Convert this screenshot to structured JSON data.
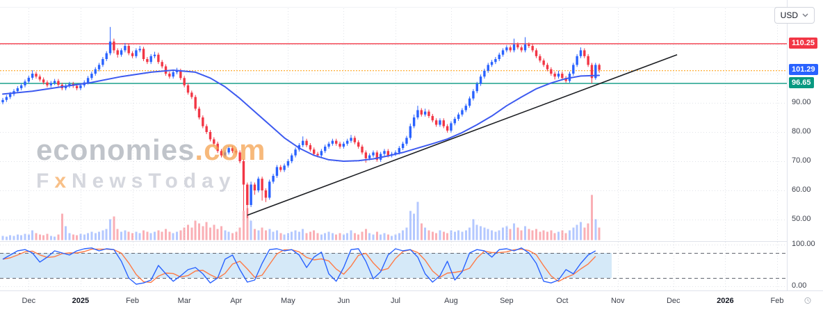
{
  "toolbar": {
    "currency_label": "USD"
  },
  "watermark": {
    "brand_gray": "economies",
    "brand_orange": ".com",
    "tagline_f": "F",
    "tagline_x": "x",
    "tagline_rest": "NewsToday"
  },
  "price_axis": {
    "ticks": [
      {
        "label": "90.00",
        "value": 90
      },
      {
        "label": "80.00",
        "value": 80
      },
      {
        "label": "70.00",
        "value": 70
      },
      {
        "label": "60.00",
        "value": 60
      },
      {
        "label": "50.00",
        "value": 50
      }
    ],
    "osc_ticks": [
      {
        "label": "100.00",
        "value": 100
      },
      {
        "label": "0.00",
        "value": 0
      }
    ],
    "badges": [
      {
        "label": "110.25",
        "value": 110.25,
        "color": "#f23645"
      },
      {
        "label": "101.29",
        "value": 101.29,
        "color": "#2962ff"
      },
      {
        "label": "96.65",
        "value": 96.65,
        "color": "#089981"
      }
    ]
  },
  "time_axis": {
    "months": [
      {
        "label": "Dec",
        "i": 7
      },
      {
        "label": "2025",
        "i": 21,
        "major": true
      },
      {
        "label": "Feb",
        "i": 35
      },
      {
        "label": "Mar",
        "i": 49
      },
      {
        "label": "Apr",
        "i": 63
      },
      {
        "label": "May",
        "i": 77
      },
      {
        "label": "Jun",
        "i": 92
      },
      {
        "label": "Jul",
        "i": 106
      },
      {
        "label": "Aug",
        "i": 121
      },
      {
        "label": "Sep",
        "i": 136
      },
      {
        "label": "Oct",
        "i": 151
      },
      {
        "label": "Nov",
        "i": 166
      },
      {
        "label": "Dec",
        "i": 181
      },
      {
        "label": "2026",
        "i": 195,
        "major": true
      },
      {
        "label": "Feb",
        "i": 209
      }
    ]
  },
  "colors": {
    "up": "#2962ff",
    "down": "#f23645",
    "volume_up": "rgba(41,98,255,0.35)",
    "volume_down": "rgba(242,54,69,0.40)",
    "ma": "#3d5af0",
    "trendline": "#1c1e22",
    "resistance": "#f23645",
    "support": "#089981",
    "pivot": "#ff9800",
    "stoch_k": "#2962ff",
    "stoch_d": "#ff7a45",
    "stoch_fill": "#d5e9f8",
    "grid": "#dfe2e8",
    "axis_border": "#e0e3eb"
  },
  "chart_data": {
    "type": "candlestick",
    "currency": "USD",
    "yrange_main": [
      48,
      118
    ],
    "yrange_oscillator": [
      0,
      100
    ],
    "levels": {
      "resistance": 110.25,
      "support": 96.65,
      "pivot": 101.0,
      "last_price": 101.29
    },
    "price_gridlines": [
      110,
      100,
      90,
      80,
      70,
      60,
      50
    ],
    "candles": [
      [
        90.2,
        91.7,
        89.5,
        91
      ],
      [
        91,
        92.7,
        90.3,
        92
      ],
      [
        92,
        93.7,
        91.3,
        93
      ],
      [
        93,
        94.7,
        92.3,
        94
      ],
      [
        94,
        95.7,
        93.3,
        95
      ],
      [
        95,
        96.7,
        94.3,
        96
      ],
      [
        96,
        98,
        95.3,
        97.3
      ],
      [
        97.3,
        99.3,
        96.6,
        98.6
      ],
      [
        98.6,
        101.2,
        97.9,
        100
      ],
      [
        100,
        100.7,
        98.3,
        99
      ],
      [
        99,
        99.7,
        97.3,
        98
      ],
      [
        98,
        98.7,
        96.3,
        97
      ],
      [
        97,
        97.7,
        95.3,
        96
      ],
      [
        96,
        97.5,
        95.3,
        96.8
      ],
      [
        96.8,
        98.2,
        96.1,
        97.5
      ],
      [
        97.5,
        98.2,
        95.5,
        96.2
      ],
      [
        96.2,
        96.9,
        94.3,
        95
      ],
      [
        95,
        96.5,
        94.3,
        95.8
      ],
      [
        95.8,
        97.2,
        95.1,
        96.5
      ],
      [
        96.5,
        97.2,
        95.1,
        95.8
      ],
      [
        95.8,
        96.5,
        94.3,
        95
      ],
      [
        95,
        96.7,
        94.3,
        96
      ],
      [
        96,
        97.7,
        95.3,
        97
      ],
      [
        97,
        99.2,
        96.3,
        98.5
      ],
      [
        98.5,
        100.7,
        97.8,
        100
      ],
      [
        100,
        102.2,
        99.3,
        101.5
      ],
      [
        101.5,
        103.7,
        100.8,
        103
      ],
      [
        103,
        105.7,
        102.3,
        105
      ],
      [
        105,
        107.7,
        104.3,
        107
      ],
      [
        107,
        116,
        106.3,
        111
      ],
      [
        111,
        112,
        107,
        108
      ],
      [
        108,
        108.7,
        105.5,
        106.5
      ],
      [
        106.5,
        108.7,
        105.8,
        108
      ],
      [
        108,
        110.5,
        107.3,
        109.5
      ],
      [
        109.5,
        110.2,
        106.3,
        107
      ],
      [
        107,
        107.7,
        105.3,
        106
      ],
      [
        106,
        108.7,
        105.3,
        108
      ],
      [
        108,
        109.5,
        107.3,
        108.5
      ],
      [
        108.5,
        109.2,
        104.3,
        105
      ],
      [
        105,
        105.7,
        103.3,
        104
      ],
      [
        104,
        106.7,
        103.3,
        106
      ],
      [
        106,
        107.5,
        105.3,
        106.5
      ],
      [
        106.5,
        107.2,
        103.3,
        104
      ],
      [
        104,
        104.7,
        101.8,
        102.5
      ],
      [
        102.5,
        103.2,
        99.3,
        100
      ],
      [
        100,
        100.7,
        98.3,
        99
      ],
      [
        99,
        101.2,
        98.3,
        100.5
      ],
      [
        100.5,
        102,
        99.8,
        101
      ],
      [
        101,
        101.7,
        97.8,
        98.5
      ],
      [
        98.5,
        99.2,
        95.3,
        96
      ],
      [
        96,
        96.7,
        92.8,
        93.5
      ],
      [
        93.5,
        94.2,
        91.3,
        92
      ],
      [
        92,
        92.7,
        87.3,
        88
      ],
      [
        88,
        88.7,
        84.3,
        85
      ],
      [
        85,
        85.7,
        81.3,
        82
      ],
      [
        82,
        82.7,
        79.3,
        80
      ],
      [
        80,
        80.7,
        76.8,
        77.5
      ],
      [
        77.5,
        78.2,
        75.3,
        76
      ],
      [
        76,
        76.7,
        72.8,
        73.5
      ],
      [
        73.5,
        74.2,
        71.3,
        72
      ],
      [
        72,
        73.7,
        71.3,
        73
      ],
      [
        73,
        75.2,
        72.3,
        74.5
      ],
      [
        74.5,
        75.2,
        72.8,
        73.5
      ],
      [
        73.5,
        74.2,
        72.3,
        73
      ],
      [
        73,
        73.7,
        69.3,
        70
      ],
      [
        70,
        70.7,
        53,
        62
      ],
      [
        62,
        62.7,
        50.5,
        55
      ],
      [
        55,
        63,
        54.3,
        62
      ],
      [
        62,
        62.7,
        58.5,
        60
      ],
      [
        60,
        64.7,
        59.3,
        64
      ],
      [
        64,
        64.7,
        56.5,
        60
      ],
      [
        60,
        60.7,
        56,
        57.5
      ],
      [
        57.5,
        63.7,
        56.8,
        63
      ],
      [
        63,
        65.7,
        62.3,
        65
      ],
      [
        65,
        68.7,
        64.3,
        68
      ],
      [
        68,
        68.7,
        66.3,
        67
      ],
      [
        67,
        69.2,
        66.3,
        68.5
      ],
      [
        68.5,
        70.7,
        67.8,
        70
      ],
      [
        70,
        72.7,
        69.3,
        72
      ],
      [
        72,
        74.7,
        71.3,
        74
      ],
      [
        74,
        76.2,
        73.3,
        75.5
      ],
      [
        75.5,
        78.5,
        74.8,
        77
      ],
      [
        77,
        77.7,
        74.8,
        75.5
      ],
      [
        75.5,
        76.2,
        73.3,
        74
      ],
      [
        74,
        74.7,
        71.8,
        72.5
      ],
      [
        72.5,
        73.2,
        71.3,
        72
      ],
      [
        72,
        74.2,
        71.3,
        73.5
      ],
      [
        73.5,
        75.7,
        72.8,
        75
      ],
      [
        75,
        76.7,
        74.3,
        76
      ],
      [
        76,
        77.7,
        75.3,
        77
      ],
      [
        77,
        77.7,
        75.3,
        76
      ],
      [
        76,
        76.7,
        74.3,
        75
      ],
      [
        75,
        76.7,
        74.3,
        76
      ],
      [
        76,
        77.7,
        75.3,
        77
      ],
      [
        77,
        79,
        76.3,
        78
      ],
      [
        78,
        78.7,
        75.8,
        76.5
      ],
      [
        76.5,
        77.2,
        74.3,
        75
      ],
      [
        75,
        75.7,
        72.3,
        73
      ],
      [
        73,
        73.7,
        69.5,
        71
      ],
      [
        71,
        72.7,
        70.3,
        72
      ],
      [
        72,
        73.7,
        71.3,
        73
      ],
      [
        73,
        73.7,
        69.8,
        70.5
      ],
      [
        70.5,
        73.2,
        69.8,
        72.5
      ],
      [
        72.5,
        74.2,
        71.8,
        73.5
      ],
      [
        73.5,
        74.2,
        71.3,
        72
      ],
      [
        72,
        73.2,
        71.3,
        72.5
      ],
      [
        72.5,
        73.7,
        71.8,
        73
      ],
      [
        73,
        75.2,
        72.3,
        74.5
      ],
      [
        74.5,
        76.7,
        73.8,
        76
      ],
      [
        76,
        78.7,
        75.3,
        78
      ],
      [
        78,
        82.9,
        77.3,
        82
      ],
      [
        82,
        86,
        81.3,
        85
      ],
      [
        85,
        89,
        84.3,
        87.5
      ],
      [
        87.5,
        88.2,
        85.3,
        86
      ],
      [
        86,
        88,
        85.3,
        87
      ],
      [
        87,
        87.7,
        84.8,
        85.5
      ],
      [
        85.5,
        86.2,
        83.3,
        84
      ],
      [
        84,
        84.7,
        81.8,
        82.5
      ],
      [
        82.5,
        84.7,
        81.8,
        84
      ],
      [
        84,
        84.7,
        81.3,
        82
      ],
      [
        82,
        82.7,
        79.8,
        80.5
      ],
      [
        80.5,
        83.7,
        79.8,
        83
      ],
      [
        83,
        85.2,
        82.3,
        84.5
      ],
      [
        84.5,
        86.7,
        83.8,
        86
      ],
      [
        86,
        88.2,
        85.3,
        87.5
      ],
      [
        87.5,
        89.7,
        86.8,
        89
      ],
      [
        89,
        92.2,
        88.3,
        91.5
      ],
      [
        91.5,
        94.7,
        90.8,
        94
      ],
      [
        94,
        97.2,
        93.3,
        96.5
      ],
      [
        96.5,
        99.7,
        95.8,
        99
      ],
      [
        99,
        101.7,
        98.3,
        101
      ],
      [
        101,
        103.7,
        100.3,
        103
      ],
      [
        103,
        104.7,
        102.3,
        104
      ],
      [
        104,
        105.7,
        103.3,
        105
      ],
      [
        105,
        107.2,
        104.3,
        106.5
      ],
      [
        106.5,
        108.7,
        105.8,
        108
      ],
      [
        108,
        109.7,
        107.3,
        109
      ],
      [
        109,
        109.7,
        107.3,
        108
      ],
      [
        108,
        112,
        107.3,
        110
      ],
      [
        110,
        110.7,
        108.3,
        109
      ],
      [
        109,
        109.7,
        107.3,
        108
      ],
      [
        108,
        112.5,
        107.3,
        110
      ],
      [
        110,
        110.7,
        108.8,
        109.5
      ],
      [
        109.5,
        110.2,
        107.3,
        108
      ],
      [
        108,
        108.7,
        105.3,
        106
      ],
      [
        106,
        106.7,
        103.8,
        104.5
      ],
      [
        104.5,
        105.2,
        102.3,
        103
      ],
      [
        103,
        103.7,
        100.8,
        101.5
      ],
      [
        101.5,
        102.2,
        99.3,
        100
      ],
      [
        100,
        100.7,
        98,
        99
      ],
      [
        99,
        101,
        98.3,
        100
      ],
      [
        100,
        100.7,
        97.8,
        98.5
      ],
      [
        98.5,
        99.2,
        96.9,
        97.5
      ],
      [
        97.5,
        100.7,
        96.9,
        100
      ],
      [
        100,
        103.7,
        99.3,
        103
      ],
      [
        103,
        106.7,
        102.3,
        106
      ],
      [
        106,
        109,
        105.3,
        108
      ],
      [
        108,
        108.7,
        105.3,
        106
      ],
      [
        106,
        106.7,
        102.3,
        103
      ],
      [
        103,
        103.7,
        96.65,
        98.5
      ],
      [
        98.5,
        103.7,
        97.9,
        103
      ],
      [
        103,
        103.5,
        100.3,
        101.29
      ]
    ],
    "volume_relative": [
      6,
      5,
      7,
      6,
      8,
      7,
      9,
      8,
      14,
      10,
      8,
      7,
      9,
      6,
      5,
      8,
      38,
      20,
      10,
      8,
      7,
      9,
      8,
      10,
      12,
      10,
      12,
      14,
      16,
      30,
      34,
      16,
      12,
      14,
      12,
      10,
      12,
      10,
      14,
      12,
      10,
      12,
      14,
      12,
      16,
      12,
      10,
      12,
      14,
      18,
      22,
      18,
      28,
      24,
      20,
      26,
      18,
      22,
      16,
      20,
      14,
      12,
      10,
      12,
      18,
      42,
      46,
      28,
      16,
      14,
      18,
      14,
      16,
      12,
      14,
      10,
      8,
      10,
      12,
      14,
      12,
      16,
      10,
      12,
      14,
      10,
      8,
      10,
      12,
      10,
      8,
      10,
      8,
      10,
      14,
      10,
      8,
      12,
      16,
      10,
      8,
      12,
      8,
      10,
      8,
      6,
      8,
      10,
      14,
      18,
      42,
      38,
      55,
      24,
      18,
      14,
      12,
      10,
      14,
      12,
      10,
      14,
      12,
      14,
      12,
      14,
      18,
      30,
      22,
      20,
      18,
      16,
      14,
      12,
      14,
      18,
      20,
      16,
      24,
      18,
      14,
      20,
      16,
      14,
      16,
      12,
      14,
      12,
      14,
      10,
      12,
      14,
      10,
      14,
      18,
      22,
      26,
      18,
      24,
      65,
      30,
      18
    ],
    "ma": {
      "name": "moving-average",
      "keypoints": [
        [
          0,
          93
        ],
        [
          8,
          94
        ],
        [
          16,
          95.5
        ],
        [
          24,
          97
        ],
        [
          32,
          99
        ],
        [
          40,
          100.5
        ],
        [
          46,
          101.2
        ],
        [
          52,
          100.5
        ],
        [
          56,
          98.5
        ],
        [
          60,
          95.5
        ],
        [
          64,
          91.5
        ],
        [
          68,
          87
        ],
        [
          72,
          82.5
        ],
        [
          76,
          78
        ],
        [
          80,
          74.5
        ],
        [
          84,
          72
        ],
        [
          88,
          70.5
        ],
        [
          92,
          70
        ],
        [
          96,
          70.2
        ],
        [
          100,
          70.8
        ],
        [
          104,
          71.8
        ],
        [
          108,
          73
        ],
        [
          112,
          74.5
        ],
        [
          116,
          76
        ],
        [
          120,
          77.6
        ],
        [
          124,
          79.8
        ],
        [
          128,
          82.5
        ],
        [
          132,
          85.5
        ],
        [
          136,
          89
        ],
        [
          140,
          92
        ],
        [
          144,
          94.8
        ],
        [
          148,
          96.8
        ],
        [
          152,
          98.3
        ],
        [
          156,
          99.2
        ],
        [
          161,
          99.4
        ]
      ]
    },
    "trendline": {
      "from": [
        66,
        51.5
      ],
      "to": [
        182,
        106.5
      ]
    },
    "oscillator": {
      "name": "stochastic",
      "range": [
        0,
        100
      ],
      "bands": [
        80,
        20
      ],
      "k_step": 2,
      "k": [
        65,
        75,
        85,
        88,
        80,
        58,
        70,
        85,
        80,
        75,
        85,
        90,
        92,
        85,
        90,
        88,
        60,
        20,
        5,
        8,
        15,
        50,
        30,
        12,
        25,
        40,
        45,
        30,
        8,
        20,
        65,
        75,
        40,
        10,
        15,
        55,
        88,
        90,
        85,
        88,
        75,
        45,
        70,
        82,
        30,
        12,
        45,
        88,
        90,
        60,
        18,
        35,
        75,
        90,
        85,
        88,
        70,
        30,
        10,
        25,
        60,
        15,
        35,
        80,
        88,
        85,
        70,
        88,
        90,
        85,
        92,
        80,
        55,
        12,
        8,
        15,
        40,
        30,
        55,
        75,
        85
      ]
    }
  }
}
